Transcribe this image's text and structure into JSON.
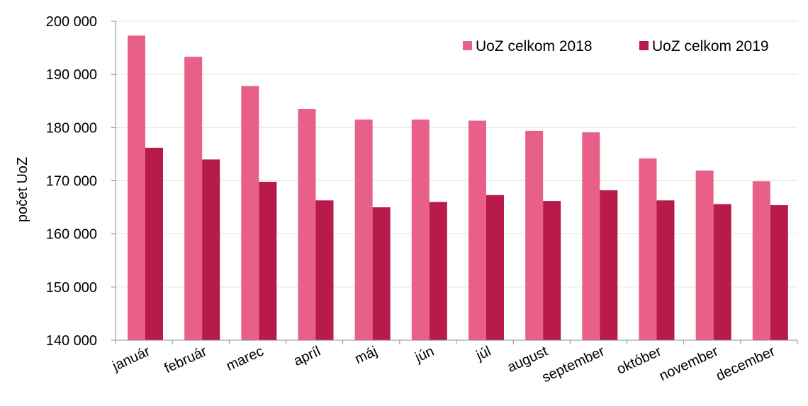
{
  "chart_data": {
    "type": "bar",
    "ylabel": "počet UoZ",
    "xlabel": "",
    "title": "",
    "ylim": [
      140000,
      200000
    ],
    "yticks": [
      140000,
      150000,
      160000,
      170000,
      180000,
      190000,
      200000
    ],
    "ytick_labels": [
      "140 000",
      "150 000",
      "160 000",
      "170 000",
      "180 000",
      "190 000",
      "200 000"
    ],
    "grid": true,
    "legend_position": "top-right",
    "categories": [
      "január",
      "február",
      "marec",
      "apríl",
      "máj",
      "jún",
      "júl",
      "august",
      "september",
      "október",
      "november",
      "december"
    ],
    "series": [
      {
        "name": "UoZ celkom 2018",
        "color": "#e85f88",
        "values": [
          197300,
          193300,
          187800,
          183500,
          181500,
          181500,
          181300,
          179400,
          179100,
          174200,
          171900,
          169900
        ]
      },
      {
        "name": "UoZ celkom 2019",
        "color": "#b81a4a",
        "values": [
          176200,
          174000,
          169800,
          166300,
          165000,
          166000,
          167300,
          166200,
          168200,
          166300,
          165600,
          165400
        ]
      }
    ]
  }
}
